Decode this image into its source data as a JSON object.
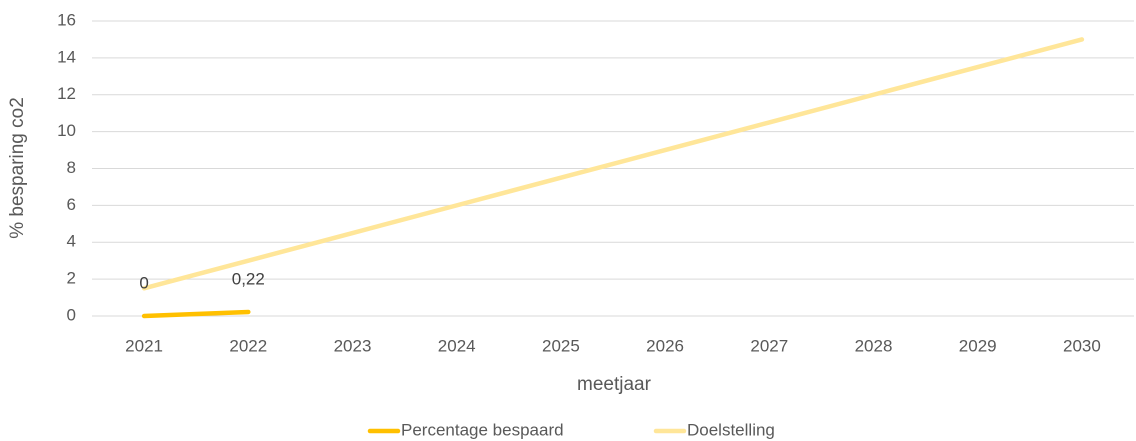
{
  "chart_data": {
    "type": "line",
    "x_label": "meetjaar",
    "y_label": "% besparing co2",
    "categories": [
      "2021",
      "2022",
      "2023",
      "2024",
      "2025",
      "2026",
      "2027",
      "2028",
      "2029",
      "2030"
    ],
    "series": [
      {
        "name": "Percentage bespaard",
        "color": "#ffc000",
        "values": [
          0,
          0.22,
          null,
          null,
          null,
          null,
          null,
          null,
          null,
          null
        ],
        "value_labels": [
          "0",
          "0,22",
          null,
          null,
          null,
          null,
          null,
          null,
          null,
          null
        ]
      },
      {
        "name": "Doelstelling",
        "color": "#ffe699",
        "values": [
          1.5,
          3,
          4.5,
          6,
          7.5,
          9,
          10.5,
          12,
          13.5,
          15
        ]
      }
    ],
    "ylim": [
      0,
      16
    ],
    "yticks": [
      0,
      2,
      4,
      6,
      8,
      10,
      12,
      14,
      16
    ],
    "grid": true,
    "legend": "bottom"
  }
}
